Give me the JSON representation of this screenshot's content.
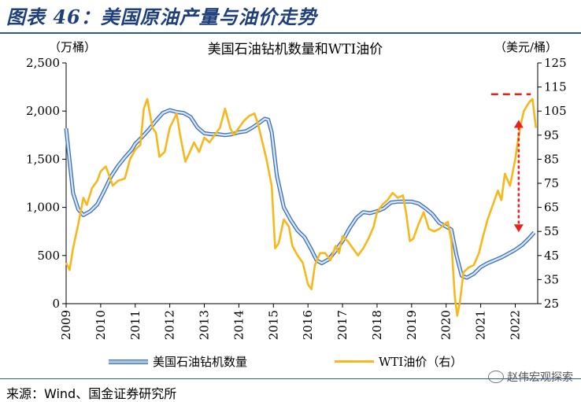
{
  "figure_title": "图表 46：美国原油产量与油价走势",
  "source": "来源：Wind、国金证券研究所",
  "watermark": "赵伟宏观探索",
  "colors": {
    "rig": "#8bb4e3",
    "rig_edge": "#3d6fb8",
    "wti": "#f6b81a",
    "annotation": "#e8201e",
    "rule": "#2a5aa0"
  },
  "icons": {
    "watermark": "wechat-icon"
  },
  "chart_data": {
    "type": "line",
    "title": "美国石油钻机数量和WTI油价",
    "y_left_label": "（万桶）",
    "y_right_label": "（美元/桶）",
    "y_left_ticks": [
      "0",
      "500",
      "1,000",
      "1,500",
      "2,000",
      "2,500"
    ],
    "y_right_ticks": [
      "25",
      "35",
      "45",
      "55",
      "65",
      "75",
      "85",
      "95",
      "105",
      "115",
      "125"
    ],
    "ylim_left": [
      0,
      2500
    ],
    "ylim_right": [
      25,
      125
    ],
    "x_ticks": [
      "2009",
      "2010",
      "2011",
      "2012",
      "2013",
      "2014",
      "2015",
      "2016",
      "2017",
      "2018",
      "2019",
      "2020",
      "2021",
      "2022"
    ],
    "xlim": [
      2009.0,
      2022.65
    ],
    "grid": false,
    "legend_position": "bottom",
    "series": [
      {
        "name": "美国石油钻机数量",
        "axis": "left",
        "style": "double-line-blue",
        "x": [
          2009.0,
          2009.1,
          2009.2,
          2009.35,
          2009.5,
          2009.7,
          2009.9,
          2010.1,
          2010.3,
          2010.5,
          2010.7,
          2010.9,
          2011.0,
          2011.2,
          2011.4,
          2011.6,
          2011.8,
          2012.0,
          2012.2,
          2012.4,
          2012.6,
          2012.8,
          2013.0,
          2013.2,
          2013.4,
          2013.6,
          2013.8,
          2014.0,
          2014.2,
          2014.4,
          2014.6,
          2014.75,
          2014.85,
          2014.95,
          2015.1,
          2015.3,
          2015.5,
          2015.7,
          2015.9,
          2016.1,
          2016.25,
          2016.4,
          2016.6,
          2016.8,
          2017.0,
          2017.2,
          2017.4,
          2017.6,
          2017.8,
          2018.0,
          2018.2,
          2018.4,
          2018.6,
          2018.8,
          2019.0,
          2019.2,
          2019.4,
          2019.6,
          2019.8,
          2020.0,
          2020.15,
          2020.3,
          2020.45,
          2020.6,
          2020.8,
          2021.0,
          2021.2,
          2021.4,
          2021.6,
          2021.8,
          2022.0,
          2022.2,
          2022.4,
          2022.55
        ],
        "values": [
          1820,
          1480,
          1150,
          980,
          920,
          960,
          1030,
          1170,
          1320,
          1430,
          1520,
          1600,
          1660,
          1730,
          1810,
          1900,
          1980,
          2010,
          1990,
          1980,
          1940,
          1830,
          1770,
          1760,
          1760,
          1750,
          1760,
          1780,
          1790,
          1830,
          1880,
          1920,
          1910,
          1780,
          1330,
          1000,
          870,
          760,
          690,
          560,
          450,
          420,
          460,
          550,
          650,
          780,
          890,
          950,
          940,
          960,
          990,
          1050,
          1060,
          1060,
          1060,
          1040,
          990,
          930,
          840,
          800,
          770,
          500,
          290,
          270,
          310,
          380,
          420,
          450,
          480,
          520,
          560,
          610,
          680,
          740
        ]
      },
      {
        "name": "WTI油价（右）",
        "axis": "right",
        "style": "line-yellow",
        "x": [
          2009.0,
          2009.1,
          2009.2,
          2009.35,
          2009.5,
          2009.6,
          2009.75,
          2009.9,
          2010.0,
          2010.15,
          2010.35,
          2010.5,
          2010.7,
          2010.85,
          2011.0,
          2011.15,
          2011.25,
          2011.35,
          2011.5,
          2011.6,
          2011.7,
          2011.85,
          2012.0,
          2012.2,
          2012.3,
          2012.45,
          2012.55,
          2012.7,
          2012.85,
          2013.0,
          2013.15,
          2013.3,
          2013.45,
          2013.6,
          2013.75,
          2013.85,
          2014.0,
          2014.15,
          2014.3,
          2014.45,
          2014.55,
          2014.65,
          2014.8,
          2014.95,
          2015.05,
          2015.15,
          2015.3,
          2015.45,
          2015.55,
          2015.7,
          2015.85,
          2016.0,
          2016.1,
          2016.2,
          2016.35,
          2016.5,
          2016.65,
          2016.8,
          2016.9,
          2017.0,
          2017.15,
          2017.3,
          2017.45,
          2017.6,
          2017.75,
          2017.9,
          2018.0,
          2018.15,
          2018.3,
          2018.45,
          2018.6,
          2018.75,
          2018.85,
          2018.95,
          2019.05,
          2019.2,
          2019.35,
          2019.5,
          2019.65,
          2019.8,
          2019.95,
          2020.05,
          2020.15,
          2020.25,
          2020.32,
          2020.4,
          2020.5,
          2020.65,
          2020.8,
          2020.95,
          2021.05,
          2021.2,
          2021.35,
          2021.5,
          2021.6,
          2021.7,
          2021.85,
          2022.0,
          2022.08,
          2022.17,
          2022.25,
          2022.33,
          2022.42,
          2022.5,
          2022.6
        ],
        "values": [
          42,
          39,
          48,
          58,
          69,
          66,
          73,
          76,
          80,
          82,
          74,
          76,
          77,
          85,
          89,
          91,
          106,
          110,
          98,
          96,
          86,
          88,
          98,
          104,
          95,
          84,
          87,
          92,
          88,
          94,
          92,
          95,
          98,
          106,
          98,
          95,
          98,
          101,
          103,
          104,
          100,
          94,
          85,
          74,
          48,
          50,
          60,
          57,
          49,
          45,
          42,
          33,
          31,
          41,
          46,
          46,
          43,
          49,
          46,
          53,
          51,
          48,
          45,
          48,
          52,
          57,
          63,
          66,
          68,
          71,
          69,
          70,
          62,
          51,
          52,
          58,
          63,
          56,
          55,
          56,
          58,
          59,
          51,
          28,
          20,
          26,
          38,
          40,
          41,
          46,
          52,
          60,
          66,
          72,
          68,
          79,
          74,
          85,
          93,
          100,
          105,
          107,
          109,
          110,
          98
        ]
      }
    ],
    "annotation": {
      "type": "dashed-arrow",
      "horizontal_y_right": 112,
      "horizontal_x": [
        2021.3,
        2022.45
      ],
      "vertical_x": 2022.1,
      "vertical_y_right": [
        55,
        101
      ]
    }
  }
}
